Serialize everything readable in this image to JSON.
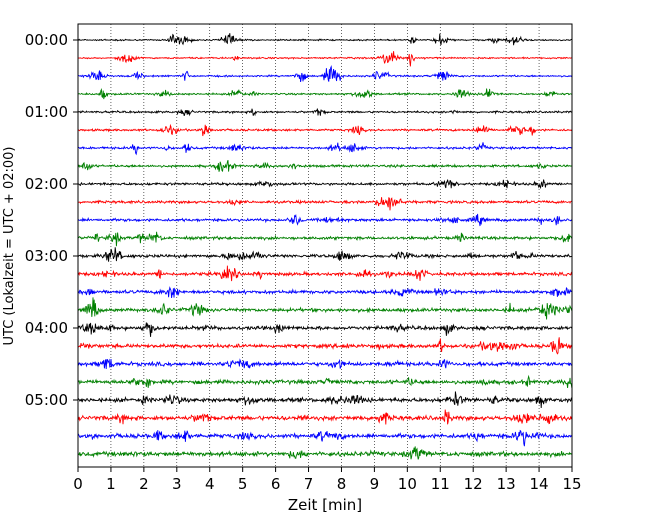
{
  "chart_data": {
    "type": "line",
    "title": "",
    "xlabel": "Zeit  [min]",
    "ylabel": "UTC (Lokalzeit = UTC + 02:00)",
    "xlim": [
      0,
      15
    ],
    "x_ticks": [
      "0",
      "1",
      "2",
      "3",
      "4",
      "5",
      "6",
      "7",
      "8",
      "9",
      "10",
      "11",
      "12",
      "13",
      "14",
      "15"
    ],
    "y_tick_labels": [
      "00:00",
      "01:00",
      "02:00",
      "03:00",
      "04:00",
      "05:00"
    ],
    "traces_per_label": 4,
    "trace_count": 24,
    "trace_colors": [
      "#000000",
      "#ff0000",
      "#0000ff",
      "#008000"
    ],
    "grid": "vertical dotted at each minute",
    "legend": "none"
  }
}
